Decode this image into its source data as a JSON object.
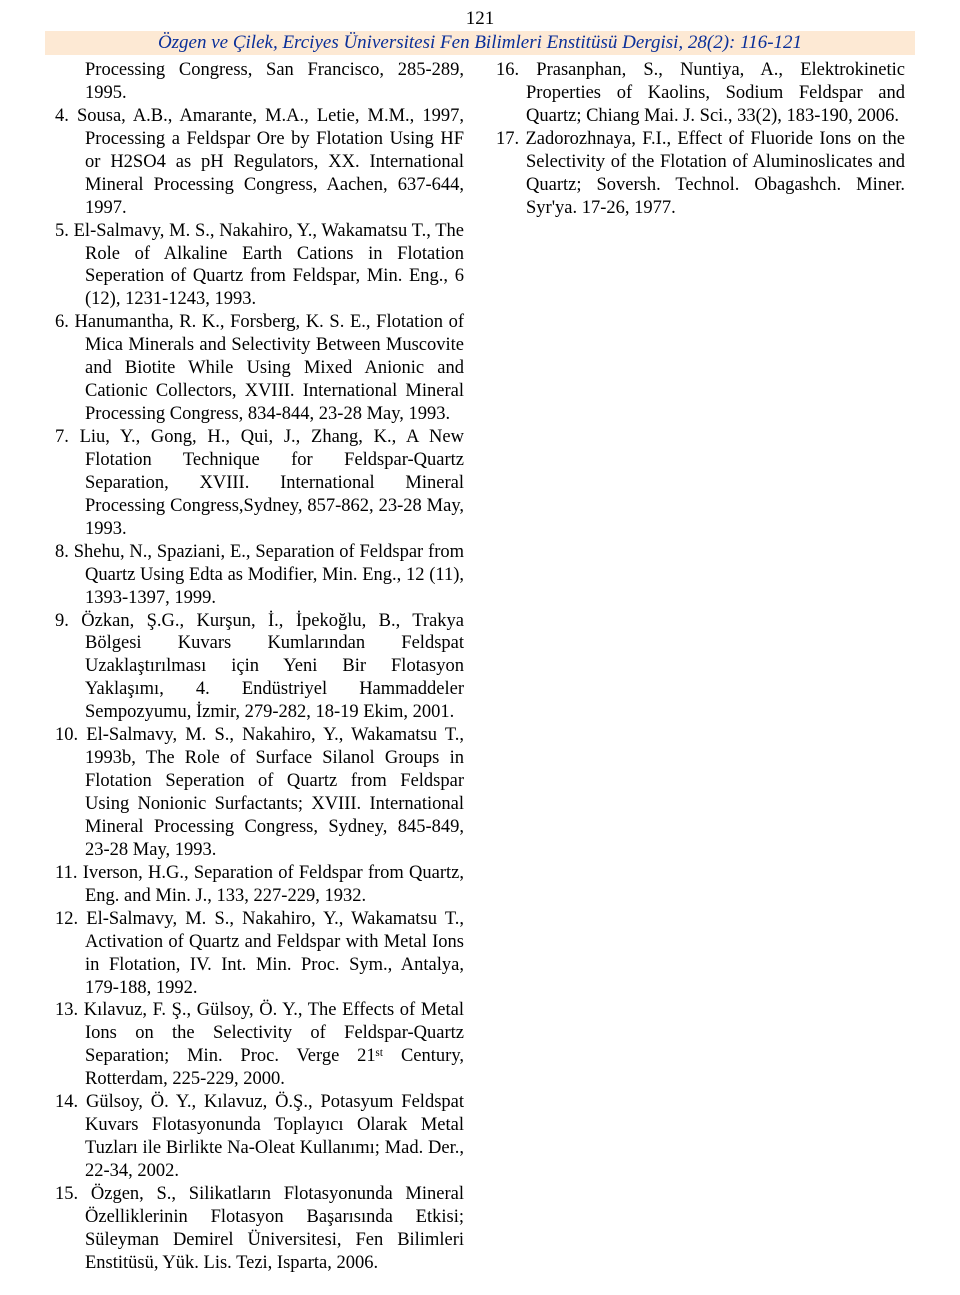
{
  "page_number": "121",
  "header": "Özgen ve Çilek, Erciyes Üniversitesi Fen Bilimleri Enstitüsü Dergisi, 28(2): 116-121",
  "left_prefix": "Processing Congress, San Francisco, 285-289, 1995.",
  "refs_left": [
    {
      "n": "4.",
      "t": "Sousa, A.B., Amarante, M.A., Letie, M.M., 1997, Processing a Feldspar Ore by Flotation Using HF or H2SO4 as pH Regulators, XX. International Mineral Processing Congress, Aachen, 637-644, 1997."
    },
    {
      "n": "5.",
      "t": "El-Salmavy, M. S., Nakahiro, Y., Wakamatsu T., The Role of Alkaline Earth Cations in Flotation Seperation of Quartz from Feldspar, Min. Eng., 6 (12), 1231-1243, 1993."
    },
    {
      "n": "6.",
      "t": "Hanumantha, R. K., Forsberg, K. S. E., Flotation of Mica Minerals and Selectivity Between Muscovite and Biotite While Using Mixed Anionic and Cationic Collectors, XVIII. International Mineral Processing Congress, 834-844, 23-28 May, 1993."
    },
    {
      "n": "7.",
      "t": "Liu, Y., Gong, H., Qui, J., Zhang, K., A New Flotation Technique for Feldspar-Quartz Separation, XVIII. International Mineral Processing Congress,Sydney, 857-862, 23-28 May, 1993."
    },
    {
      "n": "8.",
      "t": "Shehu, N., Spaziani, E., Separation of Feldspar from Quartz Using Edta as Modifier, Min. Eng., 12 (11), 1393-1397, 1999."
    },
    {
      "n": "9.",
      "t": "Özkan, Ş.G., Kurşun, İ., İpekoğlu, B., Trakya Bölgesi Kuvars Kumlarından Feldspat Uzaklaştırılması için Yeni Bir Flotasyon Yaklaşımı, 4. Endüstriyel Hammaddeler Sempozyumu, İzmir, 279-282, 18-19 Ekim, 2001."
    },
    {
      "n": "10.",
      "t": "El-Salmavy, M. S., Nakahiro, Y., Wakamatsu T., 1993b, The Role of Surface Silanol Groups in Flotation Seperation of Quartz from Feldspar Using Nonionic Surfactants; XVIII. International Mineral Processing Congress, Sydney, 845-849, 23-28 May, 1993."
    },
    {
      "n": "11.",
      "t": "Iverson, H.G., Separation of Feldspar from Quartz, Eng. and Min. J., 133, 227-229, 1932."
    },
    {
      "n": "12.",
      "t": "El-Salmavy, M. S., Nakahiro, Y., Wakamatsu T., Activation of Quartz and Feldspar with Metal Ions in Flotation, IV. Int. Min. Proc. Sym., Antalya, 179-188, 1992."
    },
    {
      "n": "13.",
      "t": "Kılavuz, F. Ş., Gülsoy, Ö. Y., The Effects of Metal Ions on the Selectivity of Feldspar-Quartz Separation; Min. Proc. Verge 21ˢᵗ Century, Rotterdam, 225-229, 2000."
    },
    {
      "n": "14.",
      "t": "Gülsoy, Ö. Y., Kılavuz, Ö.Ş., Potasyum Feldspat Kuvars Flotasyonunda Toplayıcı Olarak Metal Tuzları ile Birlikte Na-Oleat Kullanımı; Mad. Der., 22-34, 2002."
    },
    {
      "n": "15.",
      "t": "Özgen, S., Silikatların Flotasyonunda Mineral Özelliklerinin Flotasyon Başarısında Etkisi; Süleyman Demirel Üniversitesi, Fen Bilimleri Enstitüsü, Yük. Lis. Tezi, Isparta, 2006."
    }
  ],
  "refs_right": [
    {
      "n": "16.",
      "t": "Prasanphan, S., Nuntiya, A., Elektrokinetic Properties of Kaolins, Sodium Feldspar and Quartz; Chiang Mai. J. Sci., 33(2), 183-190, 2006."
    },
    {
      "n": "17.",
      "t": "Zadorozhnaya, F.I., Effect of Fluoride Ions on the Selectivity of the Flotation of Aluminoslicates and Quartz; Soversh. Technol. Obagashch. Miner. Syr'ya. 17-26, 1977."
    }
  ]
}
